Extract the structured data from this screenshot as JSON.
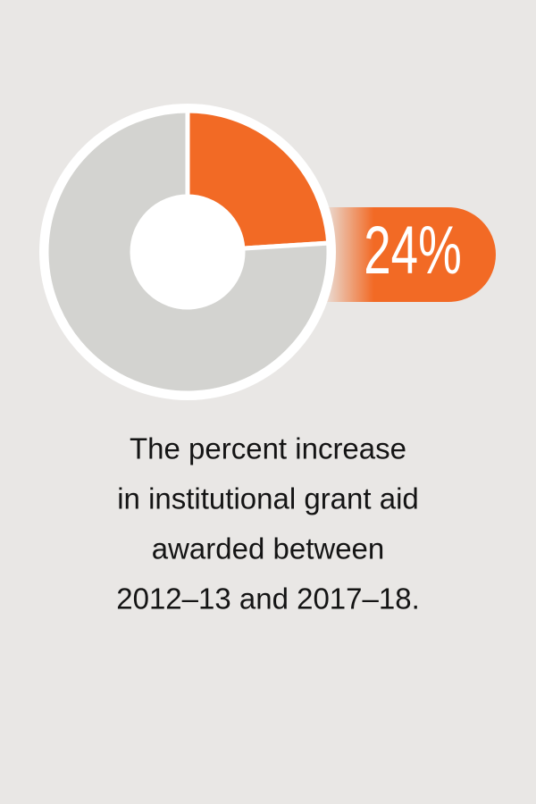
{
  "chart_data": {
    "type": "donut",
    "values": [
      24,
      76
    ],
    "value_labels": [
      "24%",
      null
    ],
    "colors": [
      "#f26a25",
      "#d3d3d0"
    ],
    "caption": [
      "The percent increase",
      "in institutional grant aid",
      "awarded between",
      "2012–13 and 2017–18."
    ]
  }
}
